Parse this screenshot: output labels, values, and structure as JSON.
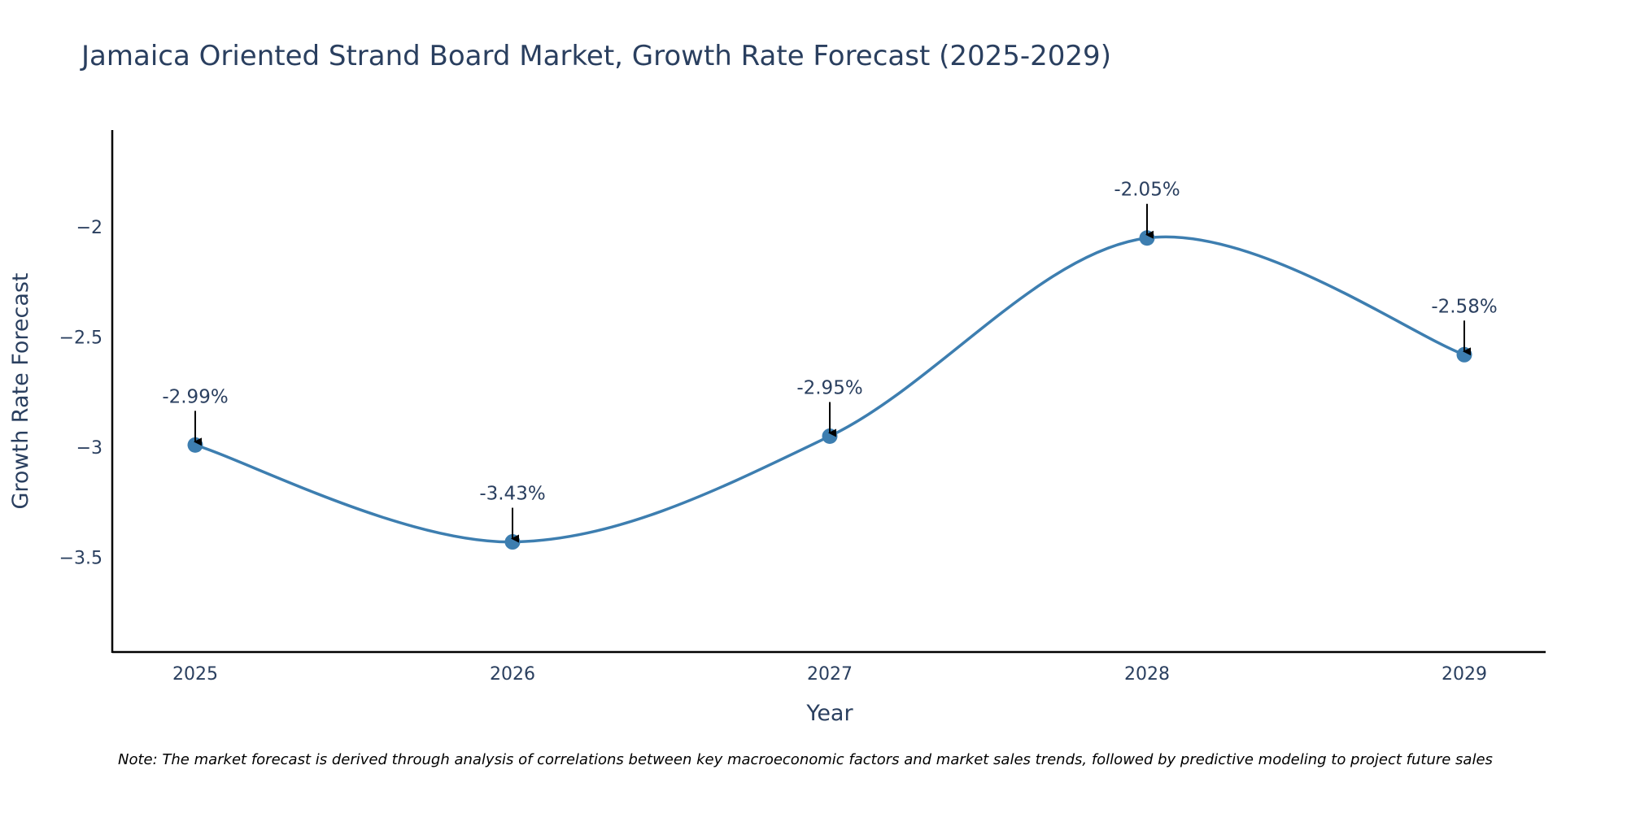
{
  "chart_data": {
    "type": "line",
    "title": "Jamaica Oriented Strand Board Market, Growth Rate Forecast (2025-2029)",
    "xlabel": "Year",
    "ylabel": "Growth Rate Forecast",
    "categories": [
      "2025",
      "2026",
      "2027",
      "2028",
      "2029"
    ],
    "values": [
      -2.99,
      -3.43,
      -2.95,
      -2.05,
      -2.58
    ],
    "data_labels": [
      "-2.99%",
      "-3.43%",
      "-2.95%",
      "-2.05%",
      "-2.58%"
    ],
    "y_ticks": [
      -2,
      -2.5,
      -3,
      -3.5
    ],
    "y_tick_labels": [
      "−2",
      "−2.5",
      "−3",
      "−3.5"
    ],
    "ylim": [
      -3.93,
      -1.56
    ],
    "line_color": "#3d7eb0",
    "marker_color": "#3d7eb0",
    "annotation_arrow_color": "#000000",
    "grid": false,
    "smoothing": "spline"
  },
  "note": "Note: The market forecast is derived through analysis of correlations between key macroeconomic factors and market sales trends, followed by predictive modeling to project future sales"
}
